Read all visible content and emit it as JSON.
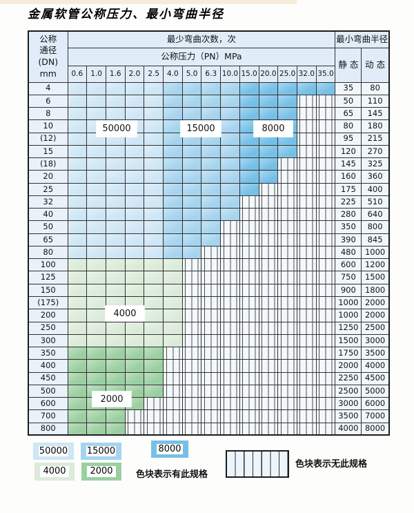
{
  "title": "金属软管公称压力、最小弯曲半径",
  "table": {
    "header": {
      "dn_lines": [
        "公称",
        "通径",
        "(DN)",
        "mm"
      ],
      "bend_cycles": "最少弯曲次数，次",
      "pressure": "公称压力（PN）MPa",
      "pressures": [
        "0.6",
        "1.0",
        "1.6",
        "2.0",
        "2.5",
        "4.0",
        "5.0",
        "6.3",
        "10.0",
        "15.0",
        "20.0",
        "25.0",
        "32.0",
        "35.0"
      ],
      "min_radius": "最小弯曲半径",
      "static": "静 态",
      "dynamic": "动 态"
    },
    "blue_zones": {
      "c50000": [
        0,
        4
      ],
      "c15000": [
        5,
        8
      ],
      "c8000": [
        9,
        13
      ]
    },
    "rows": [
      {
        "dn": "4",
        "zone": "blue",
        "colored": 14,
        "static": "35",
        "dynamic": "80"
      },
      {
        "dn": "6",
        "zone": "blue",
        "colored": 12,
        "static": "50",
        "dynamic": "110"
      },
      {
        "dn": "8",
        "zone": "blue",
        "colored": 12,
        "static": "65",
        "dynamic": "145"
      },
      {
        "dn": "10",
        "zone": "blue",
        "colored": 12,
        "static": "80",
        "dynamic": "180"
      },
      {
        "dn": "(12)",
        "zone": "blue",
        "colored": 12,
        "static": "95",
        "dynamic": "215"
      },
      {
        "dn": "15",
        "zone": "blue",
        "colored": 12,
        "static": "120",
        "dynamic": "270"
      },
      {
        "dn": "(18)",
        "zone": "blue",
        "colored": 11,
        "static": "145",
        "dynamic": "325"
      },
      {
        "dn": "20",
        "zone": "blue",
        "colored": 11,
        "static": "160",
        "dynamic": "360"
      },
      {
        "dn": "25",
        "zone": "blue",
        "colored": 10,
        "static": "175",
        "dynamic": "400"
      },
      {
        "dn": "32",
        "zone": "blue",
        "colored": 9,
        "static": "225",
        "dynamic": "510"
      },
      {
        "dn": "40",
        "zone": "blue",
        "colored": 9,
        "static": "280",
        "dynamic": "640"
      },
      {
        "dn": "50",
        "zone": "blue",
        "colored": 8,
        "static": "350",
        "dynamic": "800"
      },
      {
        "dn": "65",
        "zone": "blue",
        "colored": 8,
        "static": "390",
        "dynamic": "845"
      },
      {
        "dn": "80",
        "zone": "blue",
        "colored": 7,
        "static": "480",
        "dynamic": "1000"
      },
      {
        "dn": "100",
        "zone": "g4000",
        "colored": 6,
        "static": "600",
        "dynamic": "1200"
      },
      {
        "dn": "125",
        "zone": "g4000",
        "colored": 6,
        "static": "750",
        "dynamic": "1500"
      },
      {
        "dn": "150",
        "zone": "g4000",
        "colored": 6,
        "static": "900",
        "dynamic": "1800"
      },
      {
        "dn": "(175)",
        "zone": "g4000",
        "colored": 6,
        "static": "1000",
        "dynamic": "2000"
      },
      {
        "dn": "200",
        "zone": "g4000",
        "colored": 6,
        "static": "1000",
        "dynamic": "2000"
      },
      {
        "dn": "250",
        "zone": "g4000",
        "colored": 6,
        "static": "1250",
        "dynamic": "2500"
      },
      {
        "dn": "300",
        "zone": "g4000",
        "colored": 6,
        "static": "1500",
        "dynamic": "3000"
      },
      {
        "dn": "350",
        "zone": "g2000",
        "colored": 5,
        "static": "1750",
        "dynamic": "3500"
      },
      {
        "dn": "400",
        "zone": "g2000",
        "colored": 5,
        "static": "2000",
        "dynamic": "4000"
      },
      {
        "dn": "450",
        "zone": "g2000",
        "colored": 5,
        "static": "2250",
        "dynamic": "4500"
      },
      {
        "dn": "500",
        "zone": "g2000",
        "colored": 5,
        "static": "2500",
        "dynamic": "5000"
      },
      {
        "dn": "600",
        "zone": "g2000",
        "colored": 4,
        "static": "3000",
        "dynamic": "6000"
      },
      {
        "dn": "700",
        "zone": "g2000",
        "colored": 3,
        "static": "3500",
        "dynamic": "7000"
      },
      {
        "dn": "800",
        "zone": "g2000",
        "colored": 3,
        "static": "4000",
        "dynamic": "8000"
      }
    ]
  },
  "overlays": [
    "50000",
    "15000",
    "8000",
    "4000",
    "2000"
  ],
  "legend": {
    "swatches": [
      {
        "label": "50000",
        "color_key": "c50000"
      },
      {
        "label": "15000",
        "color_key": "c15000"
      },
      {
        "label": "8000",
        "color_key": "c8000"
      },
      {
        "label": "4000",
        "color_key": "c4000"
      },
      {
        "label": "2000",
        "color_key": "c2000"
      }
    ],
    "has_spec": "色块表示有此规格",
    "no_spec": "色块表示无此规格"
  },
  "colors": {
    "c50000": "#cee6f5",
    "c15000": "#a6d4ee",
    "c8000": "#76c0e7",
    "c4000": "#dbebd9",
    "c2000": "#9bcfa1"
  }
}
